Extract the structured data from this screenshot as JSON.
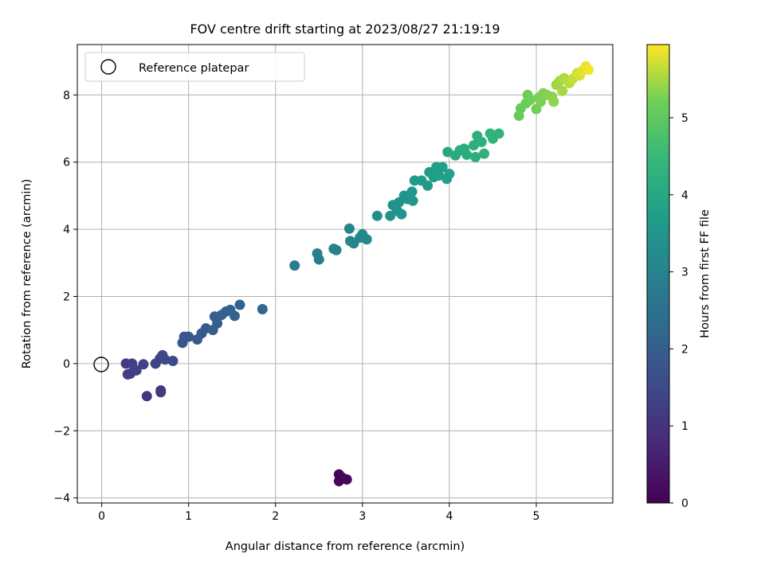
{
  "chart_data": {
    "type": "scatter",
    "title": "FOV centre drift starting at 2023/08/27 21:19:19",
    "xlabel": "Angular distance from reference (arcmin)",
    "ylabel": "Rotation from reference (arcmin)",
    "xlim": [
      -0.28,
      5.88
    ],
    "ylim": [
      -4.15,
      9.5
    ],
    "xticks": [
      0,
      1,
      2,
      3,
      4,
      5
    ],
    "yticks": [
      -4,
      -2,
      0,
      2,
      4,
      6,
      8
    ],
    "grid": true,
    "legend": {
      "position": "top-left",
      "entries": [
        "Reference platepar"
      ]
    },
    "reference_point": {
      "x": 0,
      "y": 0
    },
    "colorbar": {
      "label": "Hours from first FF file",
      "colormap": "viridis",
      "range": [
        0,
        5.95
      ],
      "ticks": [
        0,
        1,
        2,
        3,
        4,
        5
      ]
    },
    "points": [
      {
        "x": 2.73,
        "y": -3.3,
        "c": 0.05
      },
      {
        "x": 2.73,
        "y": -3.5,
        "c": 0.08
      },
      {
        "x": 2.77,
        "y": -3.4,
        "c": 0.1
      },
      {
        "x": 2.82,
        "y": -3.45,
        "c": 0.12
      },
      {
        "x": 0.52,
        "y": -0.97,
        "c": 1.05
      },
      {
        "x": 0.68,
        "y": -0.8,
        "c": 1.1
      },
      {
        "x": 0.68,
        "y": -0.85,
        "c": 1.12
      },
      {
        "x": 0.28,
        "y": 0.0,
        "c": 1.2
      },
      {
        "x": 0.3,
        "y": -0.32,
        "c": 1.22
      },
      {
        "x": 0.33,
        "y": -0.3,
        "c": 1.25
      },
      {
        "x": 0.35,
        "y": 0.0,
        "c": 1.28
      },
      {
        "x": 0.4,
        "y": -0.2,
        "c": 1.3
      },
      {
        "x": 0.48,
        "y": -0.02,
        "c": 1.32
      },
      {
        "x": 0.62,
        "y": 0.0,
        "c": 1.38
      },
      {
        "x": 0.67,
        "y": 0.15,
        "c": 1.42
      },
      {
        "x": 0.7,
        "y": 0.25,
        "c": 1.45
      },
      {
        "x": 0.73,
        "y": 0.12,
        "c": 1.48
      },
      {
        "x": 0.82,
        "y": 0.08,
        "c": 1.52
      },
      {
        "x": 0.93,
        "y": 0.62,
        "c": 1.8
      },
      {
        "x": 0.95,
        "y": 0.8,
        "c": 1.82
      },
      {
        "x": 1.0,
        "y": 0.8,
        "c": 1.84
      },
      {
        "x": 1.1,
        "y": 0.72,
        "c": 1.86
      },
      {
        "x": 1.15,
        "y": 0.9,
        "c": 1.9
      },
      {
        "x": 1.2,
        "y": 1.05,
        "c": 1.92
      },
      {
        "x": 1.28,
        "y": 1.0,
        "c": 1.96
      },
      {
        "x": 1.3,
        "y": 1.4,
        "c": 2.0
      },
      {
        "x": 1.33,
        "y": 1.2,
        "c": 2.02
      },
      {
        "x": 1.38,
        "y": 1.45,
        "c": 2.05
      },
      {
        "x": 1.43,
        "y": 1.55,
        "c": 2.08
      },
      {
        "x": 1.48,
        "y": 1.6,
        "c": 2.1
      },
      {
        "x": 1.53,
        "y": 1.42,
        "c": 2.12
      },
      {
        "x": 1.59,
        "y": 1.75,
        "c": 2.14
      },
      {
        "x": 1.85,
        "y": 1.62,
        "c": 2.22
      },
      {
        "x": 2.22,
        "y": 2.92,
        "c": 2.8
      },
      {
        "x": 2.48,
        "y": 3.28,
        "c": 2.9
      },
      {
        "x": 2.5,
        "y": 3.1,
        "c": 2.92
      },
      {
        "x": 2.67,
        "y": 3.42,
        "c": 2.98
      },
      {
        "x": 2.7,
        "y": 3.38,
        "c": 3.0
      },
      {
        "x": 2.85,
        "y": 4.02,
        "c": 3.05
      },
      {
        "x": 2.86,
        "y": 3.65,
        "c": 3.06
      },
      {
        "x": 2.9,
        "y": 3.58,
        "c": 3.08
      },
      {
        "x": 2.97,
        "y": 3.75,
        "c": 3.1
      },
      {
        "x": 3.0,
        "y": 3.85,
        "c": 3.12
      },
      {
        "x": 3.05,
        "y": 3.7,
        "c": 3.14
      },
      {
        "x": 3.17,
        "y": 4.4,
        "c": 3.3
      },
      {
        "x": 3.32,
        "y": 4.4,
        "c": 3.35
      },
      {
        "x": 3.35,
        "y": 4.72,
        "c": 3.38
      },
      {
        "x": 3.4,
        "y": 4.55,
        "c": 3.4
      },
      {
        "x": 3.42,
        "y": 4.8,
        "c": 3.42
      },
      {
        "x": 3.45,
        "y": 4.45,
        "c": 3.44
      },
      {
        "x": 3.48,
        "y": 5.0,
        "c": 3.46
      },
      {
        "x": 3.52,
        "y": 4.9,
        "c": 3.48
      },
      {
        "x": 3.57,
        "y": 5.12,
        "c": 3.5
      },
      {
        "x": 3.58,
        "y": 4.85,
        "c": 3.52
      },
      {
        "x": 3.6,
        "y": 5.45,
        "c": 3.6
      },
      {
        "x": 3.68,
        "y": 5.45,
        "c": 3.62
      },
      {
        "x": 3.75,
        "y": 5.3,
        "c": 3.65
      },
      {
        "x": 3.77,
        "y": 5.7,
        "c": 3.68
      },
      {
        "x": 3.82,
        "y": 5.55,
        "c": 3.7
      },
      {
        "x": 3.85,
        "y": 5.85,
        "c": 3.72
      },
      {
        "x": 3.88,
        "y": 5.6,
        "c": 3.74
      },
      {
        "x": 3.92,
        "y": 5.85,
        "c": 3.76
      },
      {
        "x": 3.97,
        "y": 5.5,
        "c": 3.78
      },
      {
        "x": 4.0,
        "y": 5.65,
        "c": 3.8
      },
      {
        "x": 3.98,
        "y": 6.3,
        "c": 4.05
      },
      {
        "x": 4.07,
        "y": 6.2,
        "c": 4.08
      },
      {
        "x": 4.12,
        "y": 6.35,
        "c": 4.1
      },
      {
        "x": 4.17,
        "y": 6.4,
        "c": 4.12
      },
      {
        "x": 4.2,
        "y": 6.22,
        "c": 4.14
      },
      {
        "x": 4.28,
        "y": 6.5,
        "c": 4.18
      },
      {
        "x": 4.3,
        "y": 6.15,
        "c": 4.2
      },
      {
        "x": 4.32,
        "y": 6.78,
        "c": 4.22
      },
      {
        "x": 4.37,
        "y": 6.6,
        "c": 4.24
      },
      {
        "x": 4.4,
        "y": 6.25,
        "c": 4.26
      },
      {
        "x": 4.47,
        "y": 6.85,
        "c": 4.28
      },
      {
        "x": 4.5,
        "y": 6.7,
        "c": 4.3
      },
      {
        "x": 4.57,
        "y": 6.85,
        "c": 4.32
      },
      {
        "x": 4.8,
        "y": 7.38,
        "c": 5.1
      },
      {
        "x": 4.82,
        "y": 7.6,
        "c": 5.12
      },
      {
        "x": 4.88,
        "y": 7.75,
        "c": 5.15
      },
      {
        "x": 4.9,
        "y": 8.0,
        "c": 5.18
      },
      {
        "x": 4.93,
        "y": 7.85,
        "c": 5.2
      },
      {
        "x": 5.0,
        "y": 7.58,
        "c": 5.22
      },
      {
        "x": 5.03,
        "y": 7.92,
        "c": 5.25
      },
      {
        "x": 5.05,
        "y": 7.8,
        "c": 5.27
      },
      {
        "x": 5.08,
        "y": 8.05,
        "c": 5.3
      },
      {
        "x": 5.12,
        "y": 8.0,
        "c": 5.32
      },
      {
        "x": 5.18,
        "y": 7.95,
        "c": 5.35
      },
      {
        "x": 5.2,
        "y": 7.8,
        "c": 5.38
      },
      {
        "x": 5.23,
        "y": 8.3,
        "c": 5.45
      },
      {
        "x": 5.27,
        "y": 8.42,
        "c": 5.48
      },
      {
        "x": 5.3,
        "y": 8.12,
        "c": 5.5
      },
      {
        "x": 5.32,
        "y": 8.5,
        "c": 5.55
      },
      {
        "x": 5.38,
        "y": 8.35,
        "c": 5.6
      },
      {
        "x": 5.42,
        "y": 8.48,
        "c": 5.65
      },
      {
        "x": 5.47,
        "y": 8.65,
        "c": 5.72
      },
      {
        "x": 5.5,
        "y": 8.58,
        "c": 5.76
      },
      {
        "x": 5.53,
        "y": 8.72,
        "c": 5.8
      },
      {
        "x": 5.57,
        "y": 8.85,
        "c": 5.85
      },
      {
        "x": 5.6,
        "y": 8.75,
        "c": 5.9
      }
    ]
  }
}
